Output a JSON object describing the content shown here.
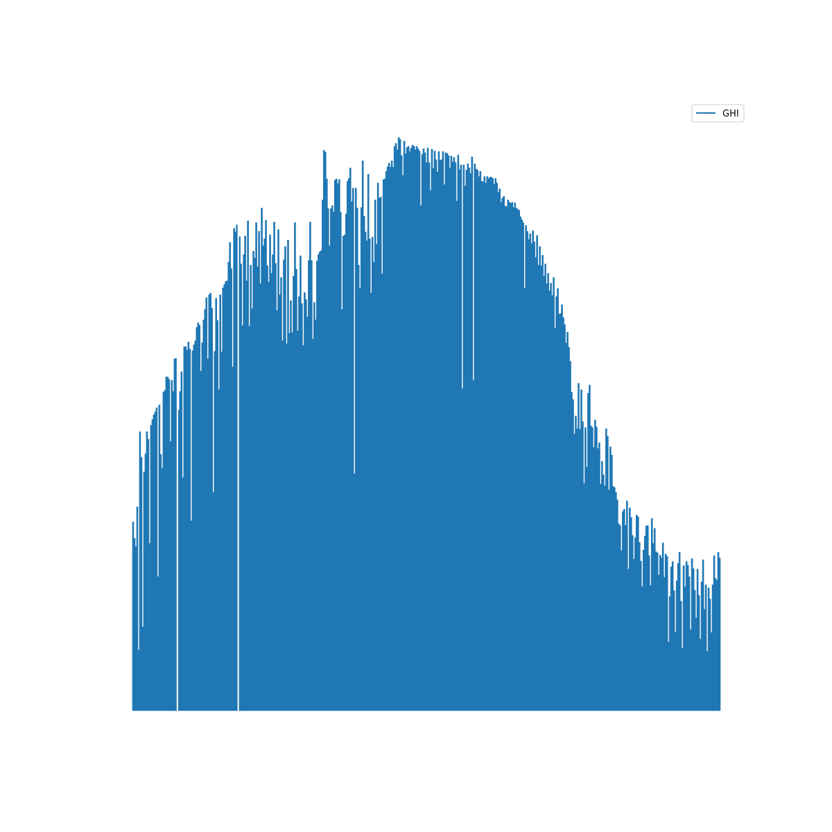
{
  "chart_data": {
    "type": "area",
    "title": "",
    "xlabel": "",
    "ylabel": "",
    "axes_visible": false,
    "grid": false,
    "legend": {
      "placement": "top-right",
      "entries": [
        "GHI"
      ]
    },
    "series": [
      {
        "name": "GHI",
        "color": "#1f77b4",
        "values": [
          0.324,
          0.296,
          0.282,
          0.35,
          0.104,
          0.479,
          0.435,
          0.144,
          0.41,
          0.441,
          0.479,
          0.466,
          0.287,
          0.49,
          0.5,
          0.508,
          0.513,
          0.52,
          0.23,
          0.525,
          0.44,
          0.416,
          0.547,
          0.55,
          0.573,
          0.573,
          0.569,
          0.462,
          0.567,
          0.548,
          0.604,
          0.605,
          0.593,
          0.516,
          0.548,
          0.582,
          0.4,
          0.625,
          0.625,
          0.619,
          0.633,
          0.621,
          0.326,
          0.618,
          0.628,
          0.635,
          0.658,
          0.666,
          0.662,
          0.583,
          0.632,
          0.671,
          0.689,
          0.709,
          0.604,
          0.714,
          0.717,
          0.691,
          0.375,
          0.617,
          0.708,
          0.67,
          0.551,
          0.714,
          0.616,
          0.726,
          0.732,
          0.737,
          0.738,
          0.77,
          0.804,
          0.759,
          0.59,
          0.828,
          0.822,
          0.834,
          0.811,
          0.814,
          0.767,
          0.661,
          0.783,
          0.815,
          0.738,
          0.841,
          0.66,
          0.765,
          0.69,
          0.789,
          0.777,
          0.838,
          0.762,
          0.823,
          0.733,
          0.863,
          0.798,
          0.81,
          0.842,
          0.764,
          0.736,
          0.817,
          0.751,
          0.783,
          0.839,
          0.768,
          0.687,
          0.826,
          0.714,
          0.744,
          0.635,
          0.774,
          0.797,
          0.63,
          0.808,
          0.648,
          0.704,
          0.649,
          0.746,
          0.838,
          0.758,
          0.652,
          0.711,
          0.781,
          0.699,
          0.627,
          0.718,
          0.706,
          0.676,
          0.773,
          0.839,
          0.773,
          0.638,
          0.701,
          0.671,
          0.772,
          0.783,
          0.788,
          0.79,
          0.877,
          0.962,
          0.959,
          0.913,
          0.862,
          0.798,
          0.862,
          0.867,
          0.856,
          0.911,
          0.913,
          0.905,
          0.912,
          0.856,
          0.689,
          0.815,
          0.817,
          0.853,
          0.909,
          0.914,
          0.932,
          0.874,
          0.897,
          0.407,
          0.897,
          0.863,
          0.765,
          0.725,
          0.864,
          0.944,
          0.849,
          0.822,
          0.807,
          0.921,
          0.81,
          0.717,
          0.813,
          0.77,
          0.877,
          0.801,
          0.906,
          0.88,
          0.882,
          0.75,
          0.912,
          0.913,
          0.926,
          0.934,
          0.94,
          0.933,
          0.944,
          0.933,
          0.969,
          0.974,
          0.963,
          0.984,
          0.981,
          0.953,
          0.919,
          0.978,
          0.956,
          0.967,
          0.969,
          0.96,
          0.966,
          0.971,
          0.969,
          0.963,
          0.969,
          0.965,
          0.961,
          0.867,
          0.955,
          0.965,
          0.958,
          0.941,
          0.966,
          0.941,
          0.893,
          0.964,
          0.931,
          0.961,
          0.946,
          0.925,
          0.96,
          0.945,
          0.946,
          0.96,
          0.903,
          0.958,
          0.957,
          0.953,
          0.932,
          0.952,
          0.942,
          0.95,
          0.941,
          0.875,
          0.954,
          0.929,
          0.937,
          0.553,
          0.937,
          0.901,
          0.928,
          0.939,
          0.932,
          0.922,
          0.951,
          0.567,
          0.939,
          0.93,
          0.928,
          0.917,
          0.926,
          0.909,
          0.908,
          0.917,
          0.906,
          0.917,
          0.914,
          0.916,
          0.916,
          0.914,
          0.904,
          0.914,
          0.906,
          0.89,
          0.896,
          0.873,
          0.88,
          0.883,
          0.866,
          0.866,
          0.877,
          0.873,
          0.871,
          0.873,
          0.864,
          0.872,
          0.863,
          0.861,
          0.859,
          0.848,
          0.843,
          0.838,
          0.725,
          0.833,
          0.823,
          0.809,
          0.819,
          0.802,
          0.824,
          0.805,
          0.778,
          0.816,
          0.765,
          0.797,
          0.764,
          0.782,
          0.746,
          0.767,
          0.733,
          0.751,
          0.721,
          0.734,
          0.713,
          0.744,
          0.657,
          0.711,
          0.725,
          0.681,
          0.682,
          0.697,
          0.675,
          0.663,
          0.631,
          0.65,
          0.624,
          0.6,
          0.547,
          0.534,
          0.475,
          0.506,
          0.484,
          0.562,
          0.483,
          0.551,
          0.496,
          0.39,
          0.486,
          0.418,
          0.545,
          0.559,
          0.489,
          0.486,
          0.452,
          0.499,
          0.487,
          0.45,
          0.46,
          0.389,
          0.428,
          0.405,
          0.386,
          0.484,
          0.471,
          0.379,
          0.453,
          0.439,
          0.385,
          0.383,
          0.375,
          0.362,
          0.321,
          0.318,
          0.275,
          0.342,
          0.346,
          0.318,
          0.36,
          0.243,
          0.348,
          0.332,
          0.301,
          0.26,
          0.297,
          0.336,
          0.333,
          0.289,
          0.257,
          0.213,
          0.276,
          0.3,
          0.317,
          0.318,
          0.266,
          0.215,
          0.33,
          0.287,
          0.313,
          0.273,
          0.271,
          0.233,
          0.267,
          0.262,
          0.288,
          0.229,
          0.269,
          0.265,
          0.118,
          0.196,
          0.247,
          0.256,
          0.206,
          0.135,
          0.223,
          0.253,
          0.272,
          0.188,
          0.107,
          0.249,
          0.213,
          0.256,
          0.25,
          0.23,
          0.139,
          0.261,
          0.244,
          0.207,
          0.159,
          0.243,
          0.198,
          0.123,
          0.221,
          0.259,
          0.174,
          0.216,
          0.102,
          0.211,
          0.192,
          0.134,
          0.216,
          0.266,
          0.227,
          0.224,
          0.272,
          0.262
        ]
      }
    ]
  }
}
